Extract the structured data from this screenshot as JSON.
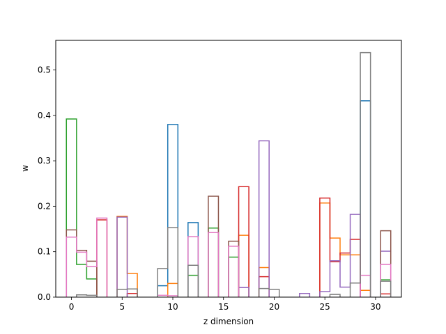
{
  "chart_data": {
    "type": "step-histogram",
    "xlabel": "z dimension",
    "ylabel": "w",
    "xlim": [
      -1.55,
      32.55
    ],
    "ylim": [
      0,
      0.565
    ],
    "x_ticks": [
      0,
      5,
      10,
      15,
      20,
      25,
      30
    ],
    "y_ticks": [
      0.0,
      0.1,
      0.2,
      0.3,
      0.4,
      0.5
    ],
    "y_tick_labels": [
      "0.0",
      "0.1",
      "0.2",
      "0.3",
      "0.4",
      "0.5"
    ],
    "grid": false,
    "legend": "none",
    "bin_width": 1,
    "bin_centers": [
      0,
      1,
      2,
      3,
      4,
      5,
      6,
      7,
      8,
      9,
      10,
      11,
      12,
      13,
      14,
      15,
      16,
      17,
      18,
      19,
      20,
      21,
      22,
      23,
      24,
      25,
      26,
      27,
      28,
      29,
      30,
      31
    ],
    "series": [
      {
        "color": "#1f77b4",
        "values": [
          0,
          0,
          0,
          0,
          0,
          0,
          0,
          0,
          0,
          0.025,
          0.38,
          0,
          0.164,
          0,
          0,
          0,
          0,
          0,
          0,
          0,
          0,
          0,
          0,
          0,
          0,
          0,
          0,
          0,
          0,
          0.432,
          0,
          0
        ]
      },
      {
        "color": "#ff7f0e",
        "values": [
          0,
          0,
          0,
          0,
          0,
          0.178,
          0.052,
          0,
          0,
          0,
          0.03,
          0,
          0,
          0,
          0,
          0,
          0,
          0.136,
          0,
          0.065,
          0,
          0,
          0,
          0,
          0,
          0.207,
          0.13,
          0.093,
          0.093,
          0.015,
          0,
          0
        ]
      },
      {
        "color": "#2ca02c",
        "values": [
          0.392,
          0.072,
          0.04,
          0,
          0,
          0,
          0,
          0,
          0,
          0,
          0,
          0,
          0.048,
          0,
          0.152,
          0,
          0.088,
          0,
          0,
          0,
          0,
          0,
          0,
          0,
          0,
          0,
          0,
          0,
          0,
          0,
          0,
          0.038
        ]
      },
      {
        "color": "#d62728",
        "values": [
          0,
          0,
          0,
          0.17,
          0,
          0,
          0.008,
          0,
          0,
          0,
          0,
          0,
          0,
          0,
          0,
          0,
          0,
          0.243,
          0,
          0.045,
          0,
          0,
          0,
          0,
          0,
          0.218,
          0.078,
          0.097,
          0.127,
          0,
          0,
          0.007
        ]
      },
      {
        "color": "#9467bd",
        "values": [
          0,
          0,
          0,
          0,
          0,
          0.176,
          0,
          0,
          0,
          0,
          0,
          0,
          0,
          0,
          0,
          0,
          0,
          0.021,
          0,
          0.344,
          0,
          0,
          0,
          0.008,
          0,
          0.012,
          0.08,
          0.022,
          0.182,
          0,
          0,
          0.101
        ]
      },
      {
        "color": "#8c564b",
        "values": [
          0.148,
          0.103,
          0.079,
          0,
          0,
          0,
          0,
          0,
          0,
          0,
          0,
          0,
          0,
          0,
          0.222,
          0,
          0.123,
          0,
          0,
          0,
          0,
          0,
          0,
          0,
          0,
          0,
          0,
          0,
          0,
          0,
          0,
          0.146
        ]
      },
      {
        "color": "#e377c2",
        "values": [
          0.132,
          0.099,
          0.067,
          0.174,
          0,
          0,
          0,
          0,
          0,
          0.004,
          0.003,
          0,
          0.133,
          0,
          0.142,
          0,
          0.112,
          0,
          0,
          0,
          0,
          0,
          0,
          0,
          0,
          0,
          0,
          0,
          0,
          0.048,
          0,
          0.072
        ]
      },
      {
        "color": "#7f7f7f",
        "values": [
          0,
          0.005,
          0.004,
          0,
          0,
          0.017,
          0.018,
          0,
          0,
          0.063,
          0.153,
          0,
          0.07,
          0,
          0,
          0,
          0,
          0,
          0,
          0.019,
          0.017,
          0,
          0,
          0,
          0,
          0,
          0.006,
          0,
          0.031,
          0.538,
          0,
          0.035
        ]
      }
    ]
  }
}
